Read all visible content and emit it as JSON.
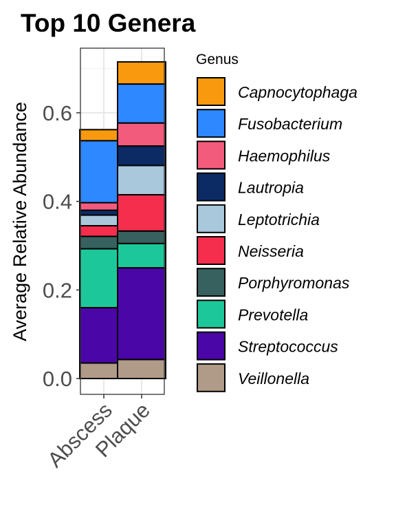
{
  "chart_data": {
    "type": "bar",
    "stacked": true,
    "title": "Top 10 Genera",
    "xlabel": "",
    "ylabel": "Average Relative Abundance",
    "categories": [
      "Abscess",
      "Plaque"
    ],
    "ylim": [
      0,
      0.72
    ],
    "yticks": [
      "0.0",
      "0.2",
      "0.4",
      "0.6"
    ],
    "grid": true,
    "legend_title": "Genus",
    "legend_position": "right",
    "series": [
      {
        "name": "Veillonella",
        "color": "#b09a88",
        "values": [
          0.035,
          0.043
        ]
      },
      {
        "name": "Streptococcus",
        "color": "#4b06a8",
        "values": [
          0.125,
          0.207
        ]
      },
      {
        "name": "Prevotella",
        "color": "#1cc89a",
        "values": [
          0.133,
          0.055
        ]
      },
      {
        "name": "Porphyromonas",
        "color": "#37615e",
        "values": [
          0.028,
          0.028
        ]
      },
      {
        "name": "Neisseria",
        "color": "#f52e4e",
        "values": [
          0.024,
          0.082
        ]
      },
      {
        "name": "Leptotrichia",
        "color": "#aac8dc",
        "values": [
          0.024,
          0.066
        ]
      },
      {
        "name": "Lautropia",
        "color": "#0c2b65",
        "values": [
          0.011,
          0.044
        ]
      },
      {
        "name": "Haemophilus",
        "color": "#f35b7c",
        "values": [
          0.017,
          0.052
        ]
      },
      {
        "name": "Fusobacterium",
        "color": "#2e88ff",
        "values": [
          0.14,
          0.088
        ]
      },
      {
        "name": "Capnocytophaga",
        "color": "#f99a0e",
        "values": [
          0.025,
          0.05
        ]
      }
    ]
  }
}
